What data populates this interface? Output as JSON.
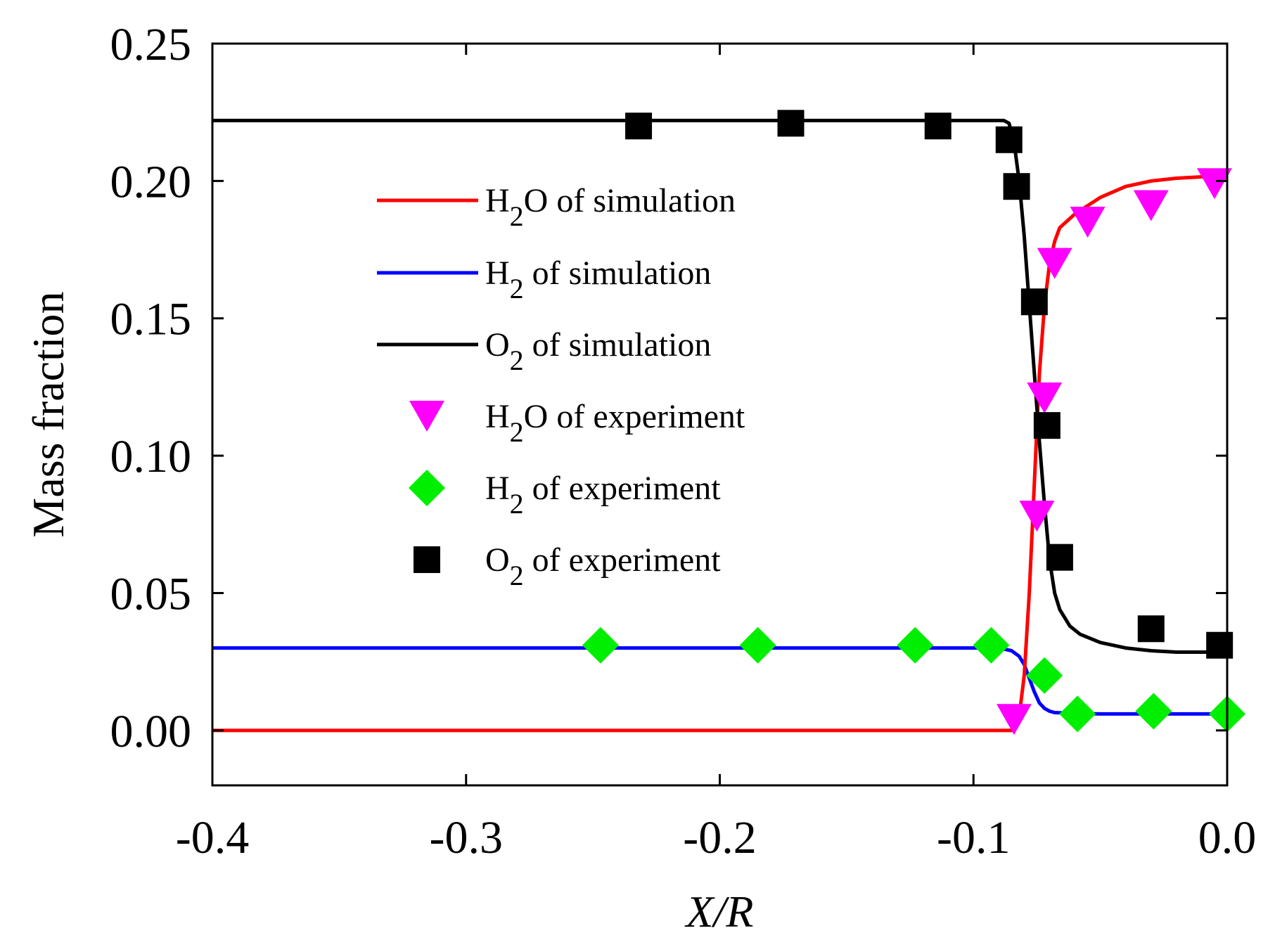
{
  "chart_data": {
    "type": "line",
    "xlabel": "X/R",
    "ylabel": "Mass fraction",
    "xlim": [
      -0.4,
      0.0
    ],
    "ylim": [
      -0.02,
      0.25
    ],
    "x_ticks": [
      "-0.4",
      "-0.3",
      "-0.2",
      "-0.1",
      "0.0"
    ],
    "y_ticks": [
      "0.00",
      "0.05",
      "0.10",
      "0.15",
      "0.20",
      "0.25"
    ],
    "grid": false,
    "legend_position": "center",
    "series": [
      {
        "name": "H2O of simulation",
        "kind": "line",
        "color": "#ff0000",
        "x": [
          -0.4,
          -0.085,
          -0.082,
          -0.08,
          -0.078,
          -0.076,
          -0.074,
          -0.072,
          -0.07,
          -0.068,
          -0.066,
          -0.06,
          -0.05,
          -0.04,
          -0.03,
          -0.02,
          -0.01,
          0.0
        ],
        "y": [
          0.0,
          0.0,
          0.005,
          0.02,
          0.05,
          0.09,
          0.13,
          0.155,
          0.17,
          0.178,
          0.183,
          0.188,
          0.194,
          0.198,
          0.2,
          0.201,
          0.2015,
          0.2015
        ]
      },
      {
        "name": "H2 of simulation",
        "kind": "line",
        "color": "#0000ff",
        "x": [
          -0.4,
          -0.09,
          -0.085,
          -0.082,
          -0.08,
          -0.078,
          -0.076,
          -0.074,
          -0.072,
          -0.07,
          -0.068,
          -0.06,
          -0.05,
          0.0
        ],
        "y": [
          0.03,
          0.03,
          0.029,
          0.027,
          0.024,
          0.019,
          0.014,
          0.01,
          0.008,
          0.007,
          0.0065,
          0.0062,
          0.006,
          0.006
        ]
      },
      {
        "name": "O2 of simulation",
        "kind": "line",
        "color": "#000000",
        "x": [
          -0.4,
          -0.088,
          -0.086,
          -0.084,
          -0.082,
          -0.08,
          -0.078,
          -0.076,
          -0.074,
          -0.072,
          -0.07,
          -0.068,
          -0.066,
          -0.062,
          -0.058,
          -0.05,
          -0.04,
          -0.03,
          -0.02,
          -0.01,
          0.0
        ],
        "y": [
          0.222,
          0.222,
          0.221,
          0.214,
          0.2,
          0.18,
          0.155,
          0.13,
          0.105,
          0.082,
          0.062,
          0.05,
          0.044,
          0.038,
          0.035,
          0.032,
          0.03,
          0.029,
          0.0285,
          0.0285,
          0.0285
        ]
      },
      {
        "name": "H2O of experiment",
        "kind": "marker",
        "marker": "triangle-down",
        "color": "#ff00ff",
        "x": [
          -0.084,
          -0.075,
          -0.072,
          -0.068,
          -0.055,
          -0.03,
          -0.005
        ],
        "y": [
          0.004,
          0.078,
          0.121,
          0.17,
          0.185,
          0.191,
          0.199
        ]
      },
      {
        "name": "H2 of experiment",
        "kind": "marker",
        "marker": "diamond",
        "color": "#00ee00",
        "x": [
          -0.247,
          -0.185,
          -0.123,
          -0.093,
          -0.072,
          -0.059,
          -0.029,
          0.0
        ],
        "y": [
          0.031,
          0.031,
          0.031,
          0.031,
          0.02,
          0.006,
          0.007,
          0.006
        ]
      },
      {
        "name": "O2 of experiment",
        "kind": "marker",
        "marker": "square",
        "color": "#000000",
        "x": [
          -0.232,
          -0.172,
          -0.114,
          -0.086,
          -0.083,
          -0.076,
          -0.071,
          -0.066,
          -0.03,
          -0.003
        ],
        "y": [
          0.22,
          0.221,
          0.22,
          0.215,
          0.198,
          0.156,
          0.111,
          0.063,
          0.037,
          0.031
        ]
      }
    ],
    "legend": [
      {
        "base": "H",
        "sub": "2",
        "rest": "O of simulation",
        "series": 0
      },
      {
        "base": "H",
        "sub": "2",
        "rest": " of simulation",
        "series": 1
      },
      {
        "base": "O",
        "sub": "2",
        "rest": " of simulation",
        "series": 2
      },
      {
        "base": "H",
        "sub": "2",
        "rest": "O of experiment",
        "series": 3
      },
      {
        "base": "H",
        "sub": "2",
        "rest": "  of experiment",
        "series": 4
      },
      {
        "base": "O",
        "sub": "2",
        "rest": " of experiment",
        "series": 5
      }
    ]
  }
}
